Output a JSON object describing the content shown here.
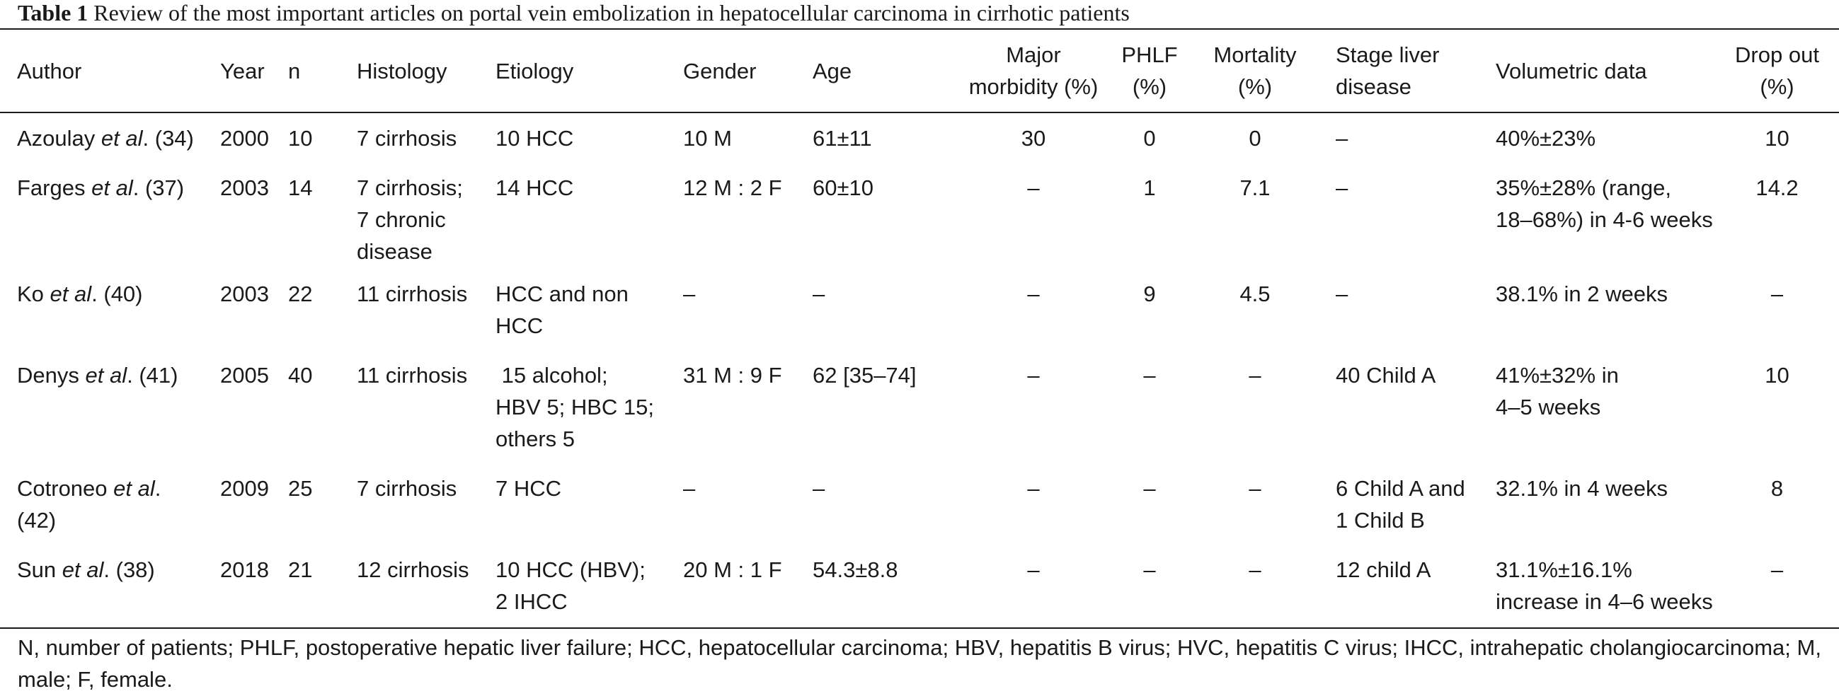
{
  "caption": {
    "label": "Table 1",
    "text": "Review of the most important articles on portal vein embolization in hepatocellular carcinoma in cirrhotic patients"
  },
  "table": {
    "headers": {
      "author": "Author",
      "year": "Year",
      "n": "n",
      "histology": "Histology",
      "etiology": "Etiology",
      "gender": "Gender",
      "age": "Age",
      "morbidity": [
        "Major",
        "morbidity (%)"
      ],
      "phlf": [
        "PHLF",
        "(%)"
      ],
      "mortality": [
        "Mortality",
        "(%)"
      ],
      "stage": [
        "Stage liver",
        "disease"
      ],
      "volumetric": "Volumetric data",
      "dropout": [
        "Drop out",
        "(%)"
      ]
    },
    "rows": [
      {
        "author": {
          "name": "Azoulay ",
          "etal": "et al",
          "ref": ". (34)"
        },
        "year": "2000",
        "n": "10",
        "histology": "7 cirrhosis",
        "etiology": "10 HCC",
        "gender": "10 M",
        "age": "61±11",
        "morbidity": "30",
        "phlf": "0",
        "mortality": "0",
        "stage": "–",
        "volumetric": "40%±23%",
        "dropout": "10"
      },
      {
        "author": {
          "name": "Farges ",
          "etal": "et al",
          "ref": ". (37)"
        },
        "year": "2003",
        "n": "14",
        "histology": [
          "7 cirrhosis;",
          "7 chronic",
          "disease"
        ],
        "etiology": "14 HCC",
        "gender": "12 M : 2 F",
        "age": "60±10",
        "morbidity": "–",
        "phlf": "1",
        "mortality": "7.1",
        "stage": "–",
        "volumetric": [
          "35%±28% (range,",
          "18–68%) in 4-6 weeks"
        ],
        "dropout": "14.2"
      },
      {
        "author": {
          "name": "Ko ",
          "etal": "et al",
          "ref": ". (40)"
        },
        "year": "2003",
        "n": "22",
        "histology": "11 cirrhosis",
        "etiology": [
          "HCC and non",
          "HCC"
        ],
        "gender": "–",
        "age": "–",
        "morbidity": "–",
        "phlf": "9",
        "mortality": "4.5",
        "stage": "–",
        "volumetric": "38.1% in 2 weeks",
        "dropout": "–"
      },
      {
        "author": {
          "name": "Denys ",
          "etal": "et al",
          "ref": ". (41)"
        },
        "year": "2005",
        "n": "40",
        "histology": "11 cirrhosis",
        "etiology": [
          " 15 alcohol;",
          "HBV 5; HBC 15;",
          "others 5"
        ],
        "gender": "31 M : 9 F",
        "age": "62 [35–74]",
        "morbidity": "–",
        "phlf": "–",
        "mortality": "–",
        "stage": "40 Child A",
        "volumetric": [
          "41%±32% in",
          "4–5 weeks"
        ],
        "dropout": "10"
      },
      {
        "author": {
          "name": "Cotroneo ",
          "etal": "et al",
          "ref": ".",
          "ref2": "(42)"
        },
        "year": "2009",
        "n": "25",
        "histology": "7 cirrhosis",
        "etiology": "7 HCC",
        "gender": "–",
        "age": "–",
        "morbidity": "–",
        "phlf": "–",
        "mortality": "–",
        "stage": [
          "6 Child A and",
          "1 Child B"
        ],
        "volumetric": "32.1% in 4 weeks",
        "dropout": "8"
      },
      {
        "author": {
          "name": "Sun ",
          "etal": "et al",
          "ref": ". (38)"
        },
        "year": "2018",
        "n": "21",
        "histology": "12 cirrhosis",
        "etiology": [
          "10 HCC (HBV);",
          "2 IHCC"
        ],
        "gender": "20 M : 1 F",
        "age": "54.3±8.8",
        "morbidity": "–",
        "phlf": "–",
        "mortality": "–",
        "stage": "12 child A",
        "volumetric": [
          "31.1%±16.1%",
          "increase in 4–6 weeks"
        ],
        "dropout": "–"
      }
    ]
  },
  "footnote": "N, number of patients; PHLF, postoperative hepatic liver failure; HCC, hepatocellular carcinoma; HBV, hepatitis B virus; HVC, hepatitis C virus; IHCC, intrahepatic cholangiocarcinoma; M, male; F, female."
}
